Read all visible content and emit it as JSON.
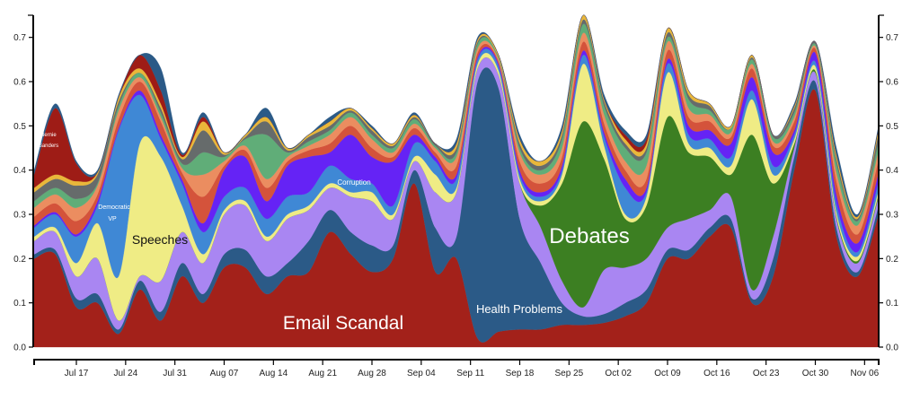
{
  "chart_data": {
    "type": "area",
    "stacked": true,
    "x_start": "2016-07-11",
    "x_step_days": 3,
    "x_range_days": [
      0,
      120
    ],
    "ylim": [
      0,
      0.75
    ],
    "yticks": [
      "0.0",
      "0.1",
      "0.2",
      "0.3",
      "0.4",
      "0.5",
      "0.6",
      "0.7"
    ],
    "xticks": [
      {
        "label": "Jul 17",
        "day": 6
      },
      {
        "label": "Jul 24",
        "day": 13
      },
      {
        "label": "Jul 31",
        "day": 20
      },
      {
        "label": "Aug 07",
        "day": 27
      },
      {
        "label": "Aug 14",
        "day": 34
      },
      {
        "label": "Aug 21",
        "day": 41
      },
      {
        "label": "Aug 28",
        "day": 48
      },
      {
        "label": "Sep 04",
        "day": 55
      },
      {
        "label": "Sep 11",
        "day": 62
      },
      {
        "label": "Sep 18",
        "day": 69
      },
      {
        "label": "Sep 25",
        "day": 76
      },
      {
        "label": "Oct 02",
        "day": 83
      },
      {
        "label": "Oct 09",
        "day": 90
      },
      {
        "label": "Oct 16",
        "day": 97
      },
      {
        "label": "Oct 23",
        "day": 104
      },
      {
        "label": "Oct 30",
        "day": 111
      },
      {
        "label": "Nov 06",
        "day": 118
      }
    ],
    "series": [
      {
        "name": "Email Scandal",
        "color": "#a3211a",
        "values": [
          0.2,
          0.21,
          0.09,
          0.1,
          0.03,
          0.13,
          0.06,
          0.16,
          0.1,
          0.18,
          0.18,
          0.12,
          0.16,
          0.17,
          0.26,
          0.21,
          0.17,
          0.2,
          0.37,
          0.17,
          0.2,
          0.02,
          0.035,
          0.04,
          0.04,
          0.05,
          0.05,
          0.055,
          0.07,
          0.1,
          0.2,
          0.2,
          0.25,
          0.27,
          0.1,
          0.16,
          0.4,
          0.58,
          0.25,
          0.16,
          0.3
        ]
      },
      {
        "name": "Health Problems",
        "color": "#2b5a87",
        "values": [
          0.01,
          0.01,
          0.02,
          0.02,
          0.01,
          0.02,
          0.02,
          0.03,
          0.02,
          0.03,
          0.04,
          0.04,
          0.03,
          0.07,
          0.05,
          0.05,
          0.06,
          0.03,
          0.03,
          0.1,
          0.05,
          0.58,
          0.55,
          0.25,
          0.15,
          0.05,
          0.02,
          0.02,
          0.03,
          0.03,
          0.02,
          0.02,
          0.02,
          0.02,
          0.01,
          0.04,
          0.03,
          0.02,
          0.02,
          0.01,
          0.02
        ]
      },
      {
        "name": "",
        "color": "#a986f2",
        "values": [
          0.03,
          0.04,
          0.05,
          0.08,
          0.02,
          0.01,
          0.07,
          0.07,
          0.07,
          0.09,
          0.1,
          0.08,
          0.1,
          0.07,
          0.05,
          0.08,
          0.1,
          0.06,
          0.02,
          0.08,
          0.1,
          0.03,
          0.03,
          0.08,
          0.08,
          0.05,
          0.02,
          0.1,
          0.08,
          0.07,
          0.05,
          0.07,
          0.04,
          0.05,
          0.02,
          0.05,
          0.02,
          0.02,
          0.02,
          0.02,
          0.02
        ]
      },
      {
        "name": "Debates",
        "color": "#3c7f22",
        "values": [
          0,
          0,
          0,
          0,
          0,
          0,
          0,
          0,
          0,
          0,
          0,
          0,
          0,
          0,
          0,
          0,
          0,
          0,
          0,
          0,
          0,
          0,
          0,
          0,
          0.05,
          0.22,
          0.42,
          0.25,
          0.11,
          0.12,
          0.25,
          0.15,
          0.12,
          0.05,
          0.35,
          0.12,
          0.01,
          0.005,
          0.005,
          0.005,
          0.005
        ]
      },
      {
        "name": "Speeches",
        "color": "#efec85",
        "values": [
          0.01,
          0.01,
          0.03,
          0.08,
          0.1,
          0.3,
          0.28,
          0.06,
          0.02,
          0.01,
          0.01,
          0.01,
          0.01,
          0.01,
          0.01,
          0.01,
          0.02,
          0.01,
          0.01,
          0.04,
          0.01,
          0.01,
          0.01,
          0.01,
          0.01,
          0.02,
          0.13,
          0.03,
          0.01,
          0.02,
          0.1,
          0.02,
          0.02,
          0.02,
          0.08,
          0.02,
          0.01,
          0.01,
          0.01,
          0.01,
          0.01
        ]
      },
      {
        "name": "Democratic VP",
        "color": "#3f88d5",
        "values": [
          0.02,
          0.03,
          0.06,
          0.04,
          0.33,
          0.11,
          0.04,
          0.05,
          0.05,
          0.03,
          0.03,
          0.04,
          0.04,
          0.03,
          0.04,
          0.03,
          0.02,
          0.02,
          0.03,
          0.03,
          0.02,
          0.01,
          0.01,
          0.01,
          0.01,
          0.01,
          0.02,
          0.02,
          0.06,
          0.01,
          0.02,
          0.02,
          0.02,
          0.02,
          0.02,
          0.02,
          0.01,
          0.01,
          0.02,
          0.01,
          0.02
        ]
      },
      {
        "name": "Corruption",
        "color": "#6523f5",
        "values": [
          0.005,
          0.005,
          0.005,
          0.01,
          0.005,
          0.01,
          0.01,
          0.01,
          0.02,
          0.06,
          0.07,
          0.04,
          0.07,
          0.08,
          0.03,
          0.1,
          0.06,
          0.1,
          0.02,
          0.01,
          0.01,
          0.005,
          0.005,
          0.01,
          0.01,
          0.01,
          0.01,
          0.01,
          0.02,
          0.01,
          0.01,
          0.02,
          0.02,
          0.03,
          0.03,
          0.03,
          0.01,
          0.02,
          0.02,
          0.02,
          0.02
        ]
      },
      {
        "name": "",
        "color": "#d4533b",
        "values": [
          0.02,
          0.02,
          0.03,
          0.015,
          0.02,
          0.02,
          0.03,
          0.015,
          0.06,
          0.01,
          0.015,
          0.03,
          0.01,
          0.015,
          0.02,
          0.02,
          0.02,
          0.01,
          0.015,
          0.01,
          0.02,
          0.01,
          0.005,
          0.02,
          0.02,
          0.02,
          0.02,
          0.02,
          0.02,
          0.02,
          0.02,
          0.02,
          0.02,
          0.015,
          0.02,
          0.015,
          0.02,
          0.01,
          0.03,
          0.02,
          0.03
        ]
      },
      {
        "name": "",
        "color": "#eb8d60",
        "values": [
          0.02,
          0.02,
          0.03,
          0.02,
          0.02,
          0.01,
          0.01,
          0.01,
          0.05,
          0.01,
          0.01,
          0.02,
          0.01,
          0.01,
          0.02,
          0.02,
          0.02,
          0.01,
          0.01,
          0.01,
          0.02,
          0.01,
          0.005,
          0.02,
          0.02,
          0.02,
          0.02,
          0.02,
          0.02,
          0.03,
          0.02,
          0.02,
          0.015,
          0.01,
          0.01,
          0.01,
          0.01,
          0.005,
          0.02,
          0.02,
          0.02
        ]
      },
      {
        "name": "",
        "color": "#60ad78",
        "values": [
          0.015,
          0.015,
          0.02,
          0.005,
          0.01,
          0.01,
          0.01,
          0.01,
          0.05,
          0.01,
          0.015,
          0.1,
          0.01,
          0.01,
          0.01,
          0.01,
          0.01,
          0.01,
          0.01,
          0.005,
          0.01,
          0.01,
          0.005,
          0.01,
          0.01,
          0.02,
          0.02,
          0.02,
          0.03,
          0.03,
          0.01,
          0.02,
          0.01,
          0.01,
          0.01,
          0.01,
          0.01,
          0.005,
          0.02,
          0.01,
          0.02
        ]
      },
      {
        "name": "",
        "color": "#666b6b",
        "values": [
          0.02,
          0.02,
          0.03,
          0.02,
          0.01,
          0,
          0.01,
          0.01,
          0.05,
          0.005,
          0.005,
          0.03,
          0.005,
          0.01,
          0.01,
          0.005,
          0.01,
          0.005,
          0.005,
          0.005,
          0.01,
          0.005,
          0,
          0.01,
          0.01,
          0.01,
          0.01,
          0.01,
          0.01,
          0.01,
          0.01,
          0.01,
          0.01,
          0,
          0.005,
          0.005,
          0.01,
          0.005,
          0.01,
          0.005,
          0.02
        ]
      },
      {
        "name": "",
        "color": "#e9b73a",
        "values": [
          0.01,
          0.01,
          0.01,
          0.005,
          0.01,
          0.01,
          0.01,
          0.005,
          0.02,
          0.005,
          0.005,
          0.01,
          0.005,
          0.005,
          0.01,
          0.005,
          0.005,
          0.005,
          0.005,
          0,
          0.01,
          0.005,
          0.005,
          0.01,
          0.01,
          0.01,
          0.01,
          0.005,
          0.01,
          0.01,
          0.01,
          0.01,
          0.005,
          0.005,
          0.005,
          0,
          0.005,
          0,
          0.01,
          0.005,
          0.01
        ]
      },
      {
        "name": "Bernie Sanders",
        "color": "#9e1c16",
        "values": [
          0.03,
          0.15,
          0.04,
          0,
          0,
          0.03,
          0.03,
          0.005,
          0.01,
          0,
          0,
          0,
          0,
          0,
          0,
          0,
          0,
          0,
          0,
          0,
          0,
          0,
          0,
          0,
          0,
          0,
          0,
          0,
          0.01,
          0.01,
          0,
          0,
          0,
          0,
          0,
          0,
          0,
          0,
          0,
          0,
          0
        ]
      },
      {
        "name": "",
        "color": "#2b5a87",
        "values": [
          0.01,
          0.01,
          0.005,
          0.005,
          0.005,
          0,
          0.05,
          0.005,
          0.01,
          0,
          0,
          0.02,
          0,
          0,
          0.01,
          0,
          0.005,
          0,
          0.005,
          0,
          0.01,
          0.005,
          0,
          0.01,
          0,
          0.01,
          0,
          0.01,
          0.01,
          0.01,
          0,
          0,
          0,
          0,
          0,
          0,
          0.005,
          0,
          0.015,
          0.005,
          0.005
        ]
      }
    ],
    "annotations": {
      "email": "Email Scandal",
      "health": "Health Problems",
      "debates": "Debates",
      "speeches": "Speeches",
      "vp_1": "Democratic",
      "vp_2": "VP",
      "corruption": "Corruption",
      "bernie_1": "Bernie",
      "bernie_2": "Sanders"
    }
  }
}
